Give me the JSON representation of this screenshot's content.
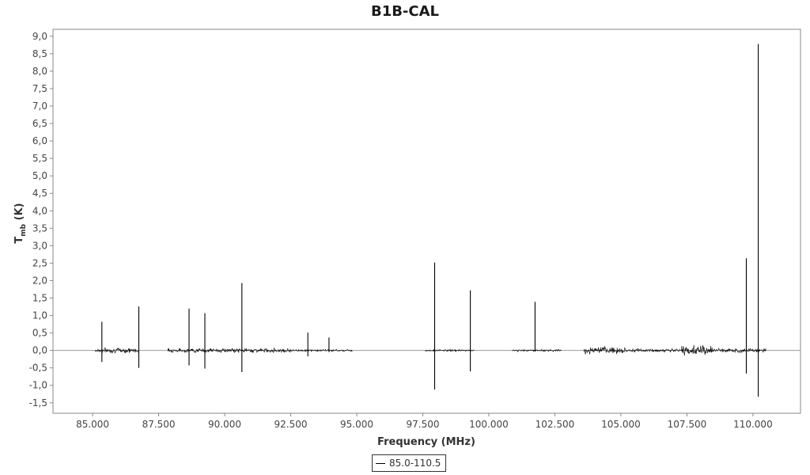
{
  "chart_data": {
    "type": "line",
    "title": "B1B-CAL",
    "xlabel": "Frequency (MHz)",
    "ylabel": {
      "main": "T",
      "subscript": "mb",
      "unit": "(K)"
    },
    "xlim": [
      83500,
      111800
    ],
    "ylim": [
      -1.8,
      9.2
    ],
    "x_ticks": [
      85000,
      87500,
      90000,
      92500,
      95000,
      97500,
      100000,
      102500,
      105000,
      107500,
      110000
    ],
    "x_tick_labels": [
      "85.000",
      "87.500",
      "90.000",
      "92.500",
      "95.000",
      "97.500",
      "100.000",
      "102.500",
      "105.000",
      "107.500",
      "110.000"
    ],
    "y_ticks": [
      -1.5,
      -1.0,
      -0.5,
      0.0,
      0.5,
      1.0,
      1.5,
      2.0,
      2.5,
      3.0,
      3.5,
      4.0,
      4.5,
      5.0,
      5.5,
      6.0,
      6.5,
      7.0,
      7.5,
      8.0,
      8.5,
      9.0
    ],
    "y_tick_labels": [
      "-1,5",
      "-1,0",
      "-0,5",
      "0,0",
      "0,5",
      "1,0",
      "1,5",
      "2,0",
      "2,5",
      "3,0",
      "3,5",
      "4,0",
      "4,5",
      "5,0",
      "5,5",
      "6,0",
      "6,5",
      "7,0",
      "7,5",
      "8,0",
      "8,5",
      "9,0"
    ],
    "grid": false,
    "legend": {
      "position": "bottom-center",
      "entries": [
        "85.0-110.5"
      ]
    },
    "series": [
      {
        "name": "85.0-110.5",
        "color": "#000000",
        "noise_bands": [
          {
            "x_start": 85100,
            "x_end": 86750,
            "rms": 0.05
          },
          {
            "x_start": 87850,
            "x_end": 92500,
            "rms": 0.04
          },
          {
            "x_start": 92500,
            "x_end": 94850,
            "rms": 0.02
          },
          {
            "x_start": 97600,
            "x_end": 99450,
            "rms": 0.02
          },
          {
            "x_start": 100900,
            "x_end": 102750,
            "rms": 0.02
          },
          {
            "x_start": 103600,
            "x_end": 105200,
            "rms": 0.07
          },
          {
            "x_start": 105200,
            "x_end": 107300,
            "rms": 0.03
          },
          {
            "x_start": 107300,
            "x_end": 108500,
            "rms": 0.09
          },
          {
            "x_start": 108500,
            "x_end": 110500,
            "rms": 0.04
          }
        ],
        "lines": [
          {
            "x": 85350,
            "peak": 0.82,
            "trough": -0.33
          },
          {
            "x": 86750,
            "peak": 1.26,
            "trough": -0.5
          },
          {
            "x": 88650,
            "peak": 1.2,
            "trough": -0.43
          },
          {
            "x": 89250,
            "peak": 1.07,
            "trough": -0.52
          },
          {
            "x": 90650,
            "peak": 1.93,
            "trough": -0.62
          },
          {
            "x": 93150,
            "peak": 0.51,
            "trough": -0.17
          },
          {
            "x": 93950,
            "peak": 0.37,
            "trough": -0.05
          },
          {
            "x": 97950,
            "peak": 2.52,
            "trough": -1.12
          },
          {
            "x": 99300,
            "peak": 1.72,
            "trough": -0.6
          },
          {
            "x": 101750,
            "peak": 1.39,
            "trough": -0.03
          },
          {
            "x": 109750,
            "peak": 2.64,
            "trough": -0.66
          },
          {
            "x": 110200,
            "peak": 8.78,
            "trough": -1.33
          }
        ]
      }
    ]
  }
}
